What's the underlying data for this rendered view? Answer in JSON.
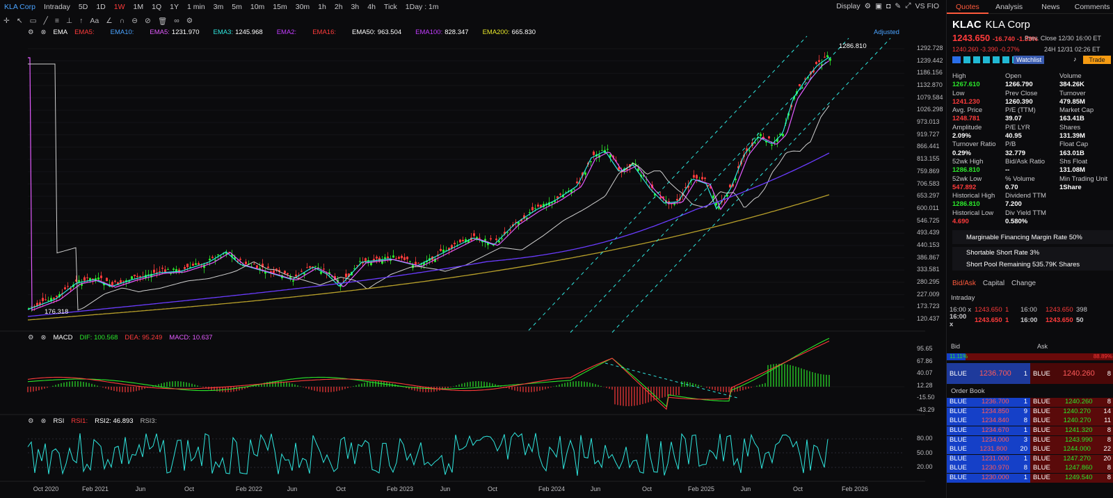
{
  "toolbar": {
    "symbol": "KLA Corp",
    "periods": [
      "Intraday",
      "5D",
      "1D",
      "1W",
      "1M",
      "1Q",
      "1Y",
      "1 min",
      "3m",
      "5m",
      "10m",
      "15m",
      "30m",
      "1h",
      "2h",
      "3h",
      "4h",
      "Tick"
    ],
    "active": "1W",
    "interval": "1Day : 1m",
    "display": "Display",
    "vsfio": "VS FIO",
    "adjusted": "Adjusted"
  },
  "ema": {
    "title": "EMA",
    "items": [
      {
        "l": "EMA5:",
        "v": "",
        "c": "#ff3b3b"
      },
      {
        "l": "EMA10:",
        "v": "",
        "c": "#4aa3ff"
      },
      {
        "l": "EMA5:",
        "v": "1231.970",
        "c": "#e35bff"
      },
      {
        "l": "EMA3:",
        "v": "1245.968",
        "c": "#2fe8e0"
      },
      {
        "l": "EMA2:",
        "v": "",
        "c": "#c23cff"
      },
      {
        "l": "EMA16:",
        "v": "",
        "c": "#ff3b3b"
      },
      {
        "l": "EMA50:",
        "v": "963.504",
        "c": "#ffffff"
      },
      {
        "l": "EMA100:",
        "v": "828.347",
        "c": "#c23cff"
      },
      {
        "l": "EMA200:",
        "v": "665.830",
        "c": "#e6e62a"
      }
    ]
  },
  "price_axis": [
    "1292.728",
    "1239.442",
    "1186.156",
    "1132.870",
    "1079.584",
    "1026.298",
    "973.013",
    "919.727",
    "866.441",
    "813.155",
    "759.869",
    "706.583",
    "653.297",
    "600.011",
    "546.725",
    "493.439",
    "440.153",
    "386.867",
    "333.581",
    "280.295",
    "227.009",
    "173.723",
    "120.437"
  ],
  "low_label": "176.318",
  "high_label": "1286.810",
  "macd": {
    "title": "MACD",
    "dif": "DIF: 100.568",
    "dea": "DEA: 95.249",
    "macd": "MACD: 10.637",
    "axis": [
      "95.65",
      "67.86",
      "40.07",
      "12.28",
      "-15.50",
      "-43.29"
    ]
  },
  "rsi": {
    "title": "RSI",
    "rsi1": "RSI1:",
    "rsi2": "RSI2: 46.893",
    "rsi3": "RSI3:",
    "axis": [
      "80.00",
      "50.00",
      "20.00"
    ]
  },
  "x_axis": [
    "Oct 2020",
    "Feb 2021",
    "Jun",
    "Oct",
    "Feb 2022",
    "Jun",
    "Oct",
    "Feb 2023",
    "Jun",
    "Oct",
    "Feb 2024",
    "Jun",
    "Oct",
    "Feb 2025",
    "Jun",
    "Oct",
    "Feb 2026"
  ],
  "side": {
    "tabs": [
      "Quotes",
      "Analysis",
      "News",
      "Comments"
    ],
    "ticker": "KLAC",
    "name": "KLA Corp",
    "price": "1243.650",
    "chg": "-16.740 -1.33%",
    "prev": "Prev. Close 12/30 16:00 ET",
    "ah_price": "1240.260",
    "ah_chg": "-3.390 -0.27%",
    "ah_time": "24H 12/31 02:26 ET",
    "watch": "Watchlist",
    "trade": "Trade",
    "stats": [
      [
        "High",
        "Open",
        "Volume"
      ],
      [
        "1267.610",
        "1266.790",
        "384.26K"
      ],
      [
        "Low",
        "Prev Close",
        "Turnover"
      ],
      [
        "1241.230",
        "1260.390",
        "479.85M"
      ],
      [
        "Avg. Price",
        "P/E (TTM)",
        "Market Cap"
      ],
      [
        "1248.781",
        "39.07",
        "163.41B"
      ],
      [
        "Amplitude",
        "P/E LYR",
        "Shares"
      ],
      [
        "2.09%",
        "40.95",
        "131.39M"
      ],
      [
        "Turnover Ratio",
        "P/B",
        "Float Cap"
      ],
      [
        "0.29%",
        "32.779",
        "163.01B"
      ],
      [
        "52wk High",
        "Bid/Ask Ratio",
        "Shs Float"
      ],
      [
        "1286.810",
        "--",
        "131.08M"
      ],
      [
        "52wk Low",
        "% Volume",
        "Min Trading Unit"
      ],
      [
        "547.892",
        "0.70",
        "1Share"
      ],
      [
        "Historical High",
        "Dividend TTM",
        ""
      ],
      [
        "1286.810",
        "7.200",
        ""
      ],
      [
        "Historical Low",
        "Div Yield TTM",
        ""
      ],
      [
        "4.690",
        "0.580%",
        ""
      ]
    ],
    "margin": "Marginable Financing Margin Rate 50%",
    "short": "Shortable Short Rate 3%",
    "pool": "Short Pool Remaining 535.79K Shares",
    "subtabs": [
      "Bid/Ask",
      "Capital",
      "Change"
    ],
    "intraday": "Intraday",
    "ticks": [
      [
        "16:00 x",
        "1243.650",
        "1",
        "16:00",
        "1243.650",
        "398"
      ],
      [
        "16:00 x",
        "1243.650",
        "1",
        "16:00",
        "1243.650",
        "50"
      ]
    ],
    "bid": "Bid",
    "ask": "Ask",
    "bidpct": "11.11%",
    "askpct": "88.89%",
    "bidrow": [
      "BLUE",
      "1236.700",
      "1"
    ],
    "askrow": [
      "BLUE",
      "1240.260",
      "8"
    ],
    "orderbook": "Order Book",
    "book": [
      [
        "1236.700",
        "1",
        "1240.260",
        "8"
      ],
      [
        "1234.850",
        "9",
        "1240.270",
        "14"
      ],
      [
        "1234.840",
        "8",
        "1240.270",
        "11"
      ],
      [
        "1234.670",
        "1",
        "1241.320",
        "8"
      ],
      [
        "1234.000",
        "3",
        "1243.990",
        "8"
      ],
      [
        "1231.800",
        "20",
        "1244.000",
        "22"
      ],
      [
        "1231.000",
        "1",
        "1247.270",
        "20"
      ],
      [
        "1230.970",
        "8",
        "1247.860",
        "8"
      ],
      [
        "1230.000",
        "1",
        "1249.540",
        "8"
      ]
    ]
  }
}
